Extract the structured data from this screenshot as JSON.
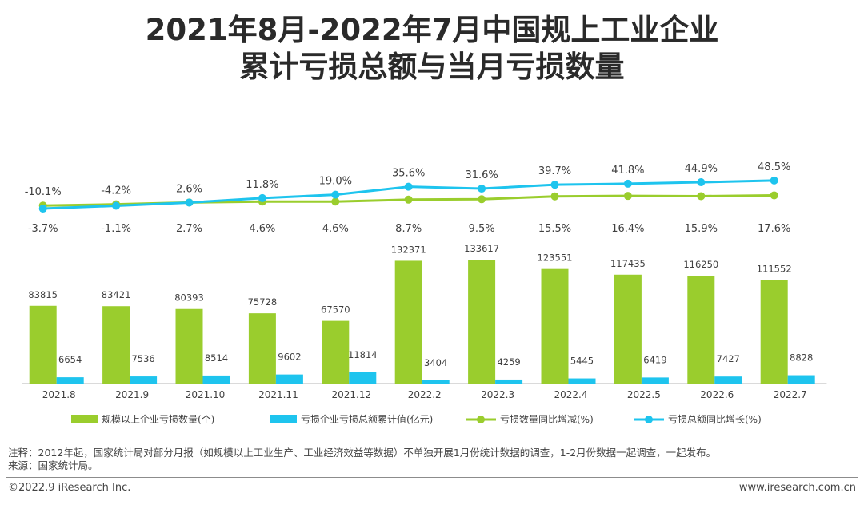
{
  "title": {
    "line1": "2021年8月-2022年7月中国规上工业企业",
    "line2": "累计亏损总额与当月亏损数量"
  },
  "colors": {
    "bar_count": "#9ACD2D",
    "bar_amount": "#1EC4EE",
    "line_count": "#9ACD2D",
    "line_amount": "#1EC4EE"
  },
  "chart_data": {
    "type": "bar+line",
    "categories": [
      "2021.8",
      "2021.9",
      "2021.10",
      "2021.11",
      "2021.12",
      "2022.2",
      "2022.3",
      "2022.4",
      "2022.5",
      "2022.6",
      "2022.7"
    ],
    "bar_series": [
      {
        "name": "规模以上企业亏损数量(个)",
        "values": [
          83815,
          83421,
          80393,
          75728,
          67570,
          132371,
          133617,
          123551,
          117435,
          116250,
          111552
        ]
      },
      {
        "name": "亏损企业亏损总额累计值(亿元)",
        "values": [
          6654,
          7536,
          8514,
          9602,
          11814,
          3404,
          4259,
          5445,
          6419,
          7427,
          8828
        ]
      }
    ],
    "line_series": [
      {
        "name": "亏损数量同比增减(%)",
        "values": [
          -3.7,
          -1.1,
          2.7,
          4.6,
          4.6,
          8.7,
          9.5,
          15.5,
          16.4,
          15.9,
          17.6
        ]
      },
      {
        "name": "亏损总额同比增长(%)",
        "values": [
          -10.1,
          -4.2,
          2.6,
          11.8,
          19.0,
          35.6,
          31.6,
          39.7,
          41.8,
          44.9,
          48.5
        ]
      }
    ],
    "bar_labels": {
      "count": [
        "83815",
        "83421",
        "80393",
        "75728",
        "67570",
        "132371",
        "133617",
        "123551",
        "117435",
        "116250",
        "111552"
      ],
      "amount": [
        "6654",
        "7536",
        "8514",
        "9602",
        "11814",
        "3404",
        "4259",
        "5445",
        "6419",
        "7427",
        "8828"
      ]
    },
    "line_labels": {
      "count": [
        "-3.7%",
        "-1.1%",
        "2.7%",
        "4.6%",
        "4.6%",
        "8.7%",
        "9.5%",
        "15.5%",
        "16.4%",
        "15.9%",
        "17.6%"
      ],
      "amount": [
        "-10.1%",
        "-4.2%",
        "2.6%",
        "11.8%",
        "19.0%",
        "35.6%",
        "31.6%",
        "39.7%",
        "41.8%",
        "44.9%",
        "48.5%"
      ]
    },
    "legend": [
      "规模以上企业亏损数量(个)",
      "亏损企业亏损总额累计值(亿元)",
      "亏损数量同比增减(%)",
      "亏损总额同比增长(%)"
    ],
    "legend_position": "bottom"
  },
  "note": "注释：2012年起，国家统计局对部分月报（如规模以上工业生产、工业经济效益等数据）不单独开展1月份统计数据的调查，1-2月份数据一起调查，一起发布。",
  "source": "来源：国家统计局。",
  "footer": {
    "left": "©2022.9 iResearch Inc.",
    "right": "www.iresearch.com.cn"
  }
}
